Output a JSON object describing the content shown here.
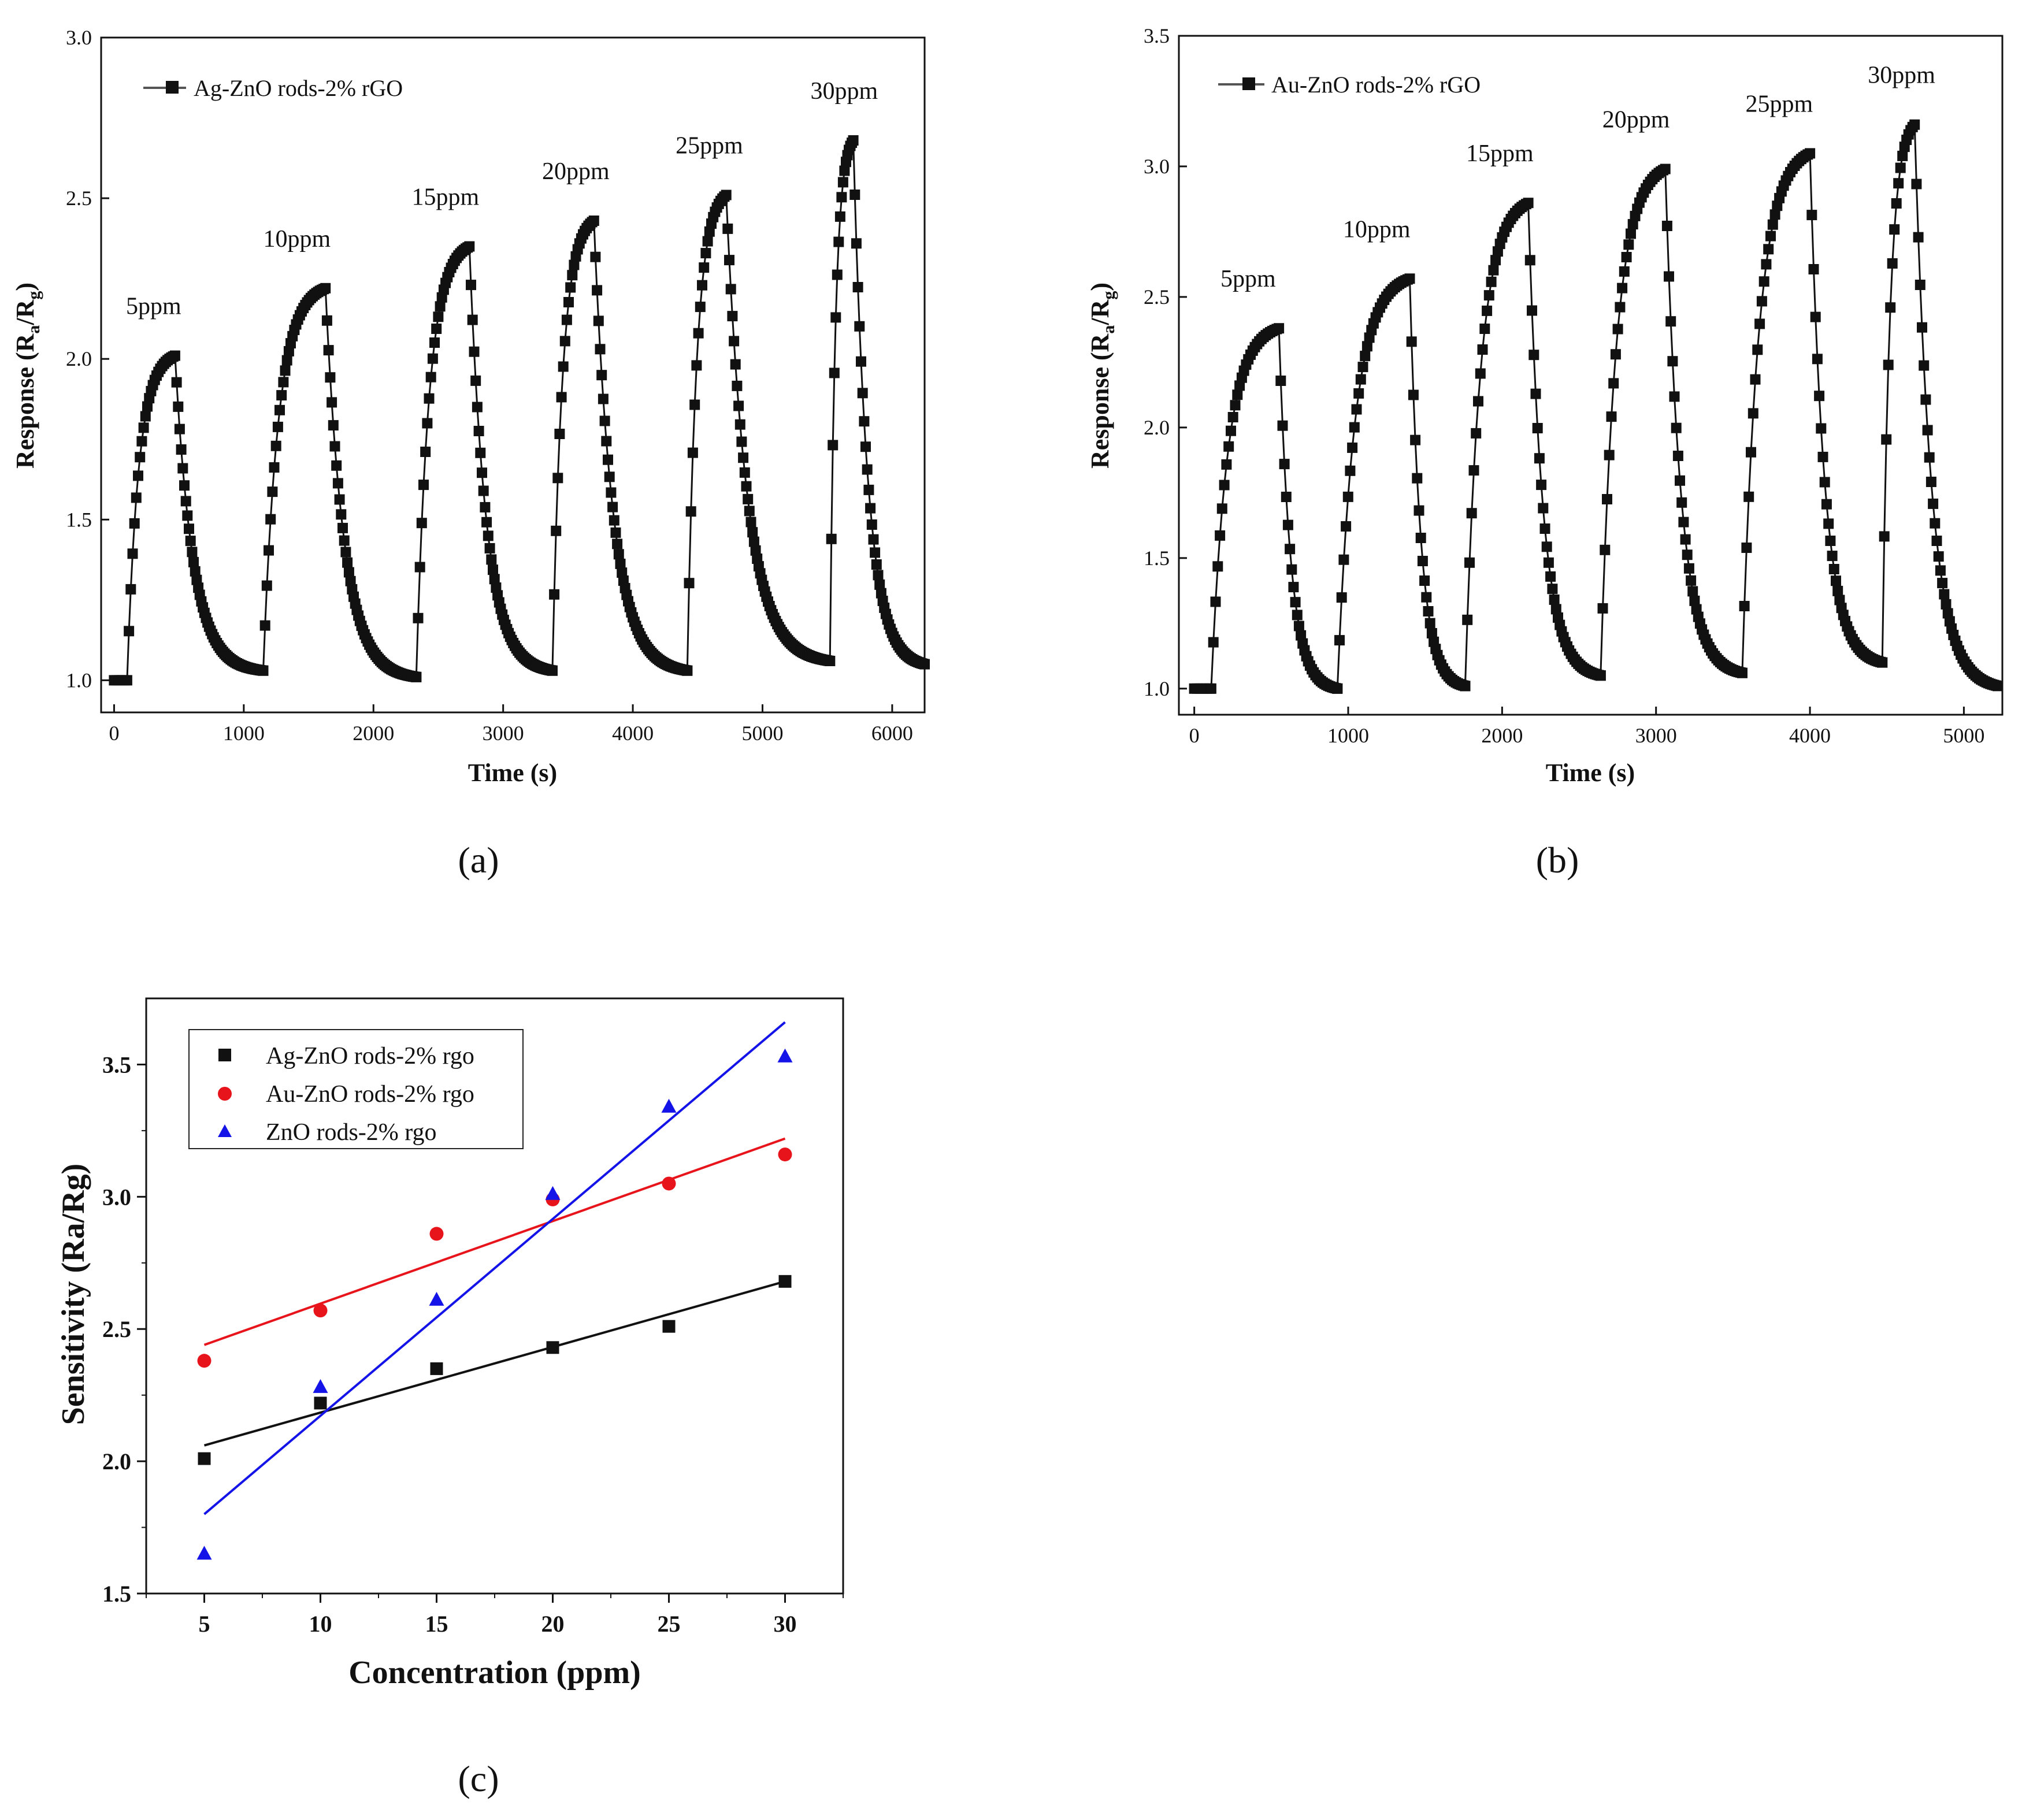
{
  "colors": {
    "black": "#111111",
    "red": "#e8141c",
    "blue": "#1414e8"
  },
  "chart_data": [
    {
      "id": "a",
      "type": "line",
      "panel_label": "(a)",
      "title": "",
      "xlabel": "Time (s)",
      "ylabel_main": "Response (R",
      "ylabel_sub_a": "a",
      "ylabel_mid": "/R",
      "ylabel_sub_g": "g",
      "ylabel_end": ")",
      "xlim": [
        -100,
        6250
      ],
      "ylim": [
        0.9,
        3.0
      ],
      "xticks": [
        0,
        1000,
        2000,
        3000,
        4000,
        5000,
        6000
      ],
      "yticks": [
        1.0,
        1.5,
        2.0,
        2.5,
        3.0
      ],
      "ytick_labels": [
        "1.0",
        "1.5",
        "2.0",
        "2.5",
        "3.0"
      ],
      "legend": "Ag-ZnO rods-2% rGO",
      "baseline": 1.0,
      "cycles": [
        {
          "label": "5ppm",
          "on": 100,
          "off": 470,
          "peak": 2.01,
          "end": 1150,
          "floor": 1.03
        },
        {
          "label": "10ppm",
          "on": 1150,
          "off": 1630,
          "peak": 2.22,
          "end": 2330,
          "floor": 1.01
        },
        {
          "label": "15ppm",
          "on": 2330,
          "off": 2740,
          "peak": 2.35,
          "end": 3380,
          "floor": 1.03
        },
        {
          "label": "20ppm",
          "on": 3380,
          "off": 3700,
          "peak": 2.43,
          "end": 4420,
          "floor": 1.03
        },
        {
          "label": "25ppm",
          "on": 4420,
          "off": 4720,
          "peak": 2.51,
          "end": 5520,
          "floor": 1.06
        },
        {
          "label": "30ppm",
          "on": 5520,
          "off": 5700,
          "peak": 2.68,
          "end": 6250,
          "floor": 1.05
        }
      ]
    },
    {
      "id": "b",
      "type": "line",
      "panel_label": "(b)",
      "title": "",
      "xlabel": "Time (s)",
      "ylabel_main": "Response (R",
      "ylabel_sub_a": "a",
      "ylabel_mid": "/R",
      "ylabel_sub_g": "g",
      "ylabel_end": ")",
      "xlim": [
        -100,
        5250
      ],
      "ylim": [
        0.9,
        3.5
      ],
      "xticks": [
        0,
        1000,
        2000,
        3000,
        4000,
        5000
      ],
      "yticks": [
        1.0,
        1.5,
        2.0,
        2.5,
        3.0,
        3.5
      ],
      "ytick_labels": [
        "1.0",
        "1.5",
        "2.0",
        "2.5",
        "3.0",
        "3.5"
      ],
      "legend": "Au-ZnO rods-2% rGO",
      "baseline": 1.0,
      "cycles": [
        {
          "label": "5ppm",
          "on": 110,
          "off": 550,
          "peak": 2.38,
          "end": 930,
          "floor": 1.0
        },
        {
          "label": "10ppm",
          "on": 930,
          "off": 1400,
          "peak": 2.57,
          "end": 1760,
          "floor": 1.01
        },
        {
          "label": "15ppm",
          "on": 1760,
          "off": 2170,
          "peak": 2.86,
          "end": 2640,
          "floor": 1.05
        },
        {
          "label": "20ppm",
          "on": 2640,
          "off": 3060,
          "peak": 2.99,
          "end": 3560,
          "floor": 1.06
        },
        {
          "label": "25ppm",
          "on": 3560,
          "off": 4000,
          "peak": 3.05,
          "end": 4470,
          "floor": 1.1
        },
        {
          "label": "30ppm",
          "on": 4470,
          "off": 4680,
          "peak": 3.16,
          "end": 5220,
          "floor": 1.01
        }
      ]
    },
    {
      "id": "c",
      "type": "scatter",
      "panel_label": "(c)",
      "title": "",
      "xlabel": "Concentration (ppm)",
      "ylabel": "Sensitivity (Ra/Rg)",
      "xlim": [
        2.5,
        32.5
      ],
      "ylim": [
        1.5,
        3.75
      ],
      "xticks": [
        5,
        10,
        15,
        20,
        25,
        30
      ],
      "xtick_labels": [
        "5",
        "10",
        "15",
        "20",
        "25",
        "30"
      ],
      "yticks": [
        1.5,
        2.0,
        2.5,
        3.0,
        3.5
      ],
      "ytick_labels": [
        "1.5",
        "2.0",
        "2.5",
        "3.0",
        "3.5"
      ],
      "series": [
        {
          "name": "Ag-ZnO rods-2% rgo",
          "marker": "square",
          "color": "#111111",
          "x": [
            5,
            10,
            15,
            20,
            25,
            30
          ],
          "y": [
            2.01,
            2.22,
            2.35,
            2.43,
            2.51,
            2.68
          ],
          "fit": [
            [
              5,
              2.06
            ],
            [
              30,
              2.68
            ]
          ]
        },
        {
          "name": "Au-ZnO rods-2% rgo",
          "marker": "circle",
          "color": "#e8141c",
          "x": [
            5,
            10,
            15,
            20,
            25,
            30
          ],
          "y": [
            2.38,
            2.57,
            2.86,
            2.99,
            3.05,
            3.16
          ],
          "fit": [
            [
              5,
              2.44
            ],
            [
              30,
              3.22
            ]
          ]
        },
        {
          "name": "ZnO rods-2% rgo",
          "marker": "triangle",
          "color": "#1414e8",
          "x": [
            5,
            10,
            15,
            20,
            25,
            30
          ],
          "y": [
            1.65,
            2.28,
            2.61,
            3.01,
            3.34,
            3.53
          ],
          "fit": [
            [
              5,
              1.8
            ],
            [
              30,
              3.66
            ]
          ]
        }
      ]
    }
  ]
}
